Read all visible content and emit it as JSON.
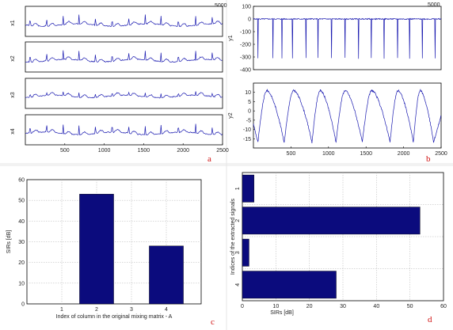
{
  "figure_labels": {
    "a": "a",
    "b": "b",
    "c": "c",
    "d": "d"
  },
  "chart_data": [
    {
      "id": "a",
      "type": "line",
      "subplots": [
        {
          "ylabel": "x1",
          "ylim": [
            -1,
            1
          ]
        },
        {
          "ylabel": "x2",
          "ylim": [
            -1,
            1
          ]
        },
        {
          "ylabel": "x3",
          "ylim": [
            -1,
            1
          ]
        },
        {
          "ylabel": "x4",
          "ylim": [
            -1,
            1
          ]
        }
      ],
      "xlim": [
        0,
        2500
      ],
      "xticks": [
        500,
        1000,
        1500,
        2000,
        2500
      ],
      "top_right_label": "5000",
      "beats_x": [
        60,
        270,
        480,
        680,
        890,
        1100,
        1310,
        1520,
        1720,
        1940,
        2160,
        2370
      ]
    },
    {
      "id": "b1",
      "type": "line",
      "ylabel": "y1",
      "xlim": [
        0,
        2500
      ],
      "ylim": [
        -400,
        100
      ],
      "yticks": [
        100,
        0,
        -100,
        -200,
        -300,
        -400
      ],
      "top_right_label": "5000",
      "spikes_x": [
        60,
        260,
        380,
        520,
        700,
        860,
        1040,
        1220,
        1400,
        1570,
        1740,
        1920,
        2080,
        2250,
        2420
      ]
    },
    {
      "id": "b2",
      "type": "line",
      "ylabel": "y2",
      "xlim": [
        0,
        2500
      ],
      "ylim": [
        -20,
        15
      ],
      "yticks": [
        10,
        5,
        0,
        -5,
        -10,
        -15
      ],
      "xticks": [
        500,
        1000,
        1500,
        2000,
        2500
      ],
      "minima_x": [
        60,
        410,
        780,
        1100,
        1450,
        1820,
        2130,
        2400
      ]
    },
    {
      "id": "c",
      "type": "bar",
      "categories": [
        "1",
        "2",
        "3",
        "4"
      ],
      "values": [
        0,
        53,
        0,
        28
      ],
      "ylabel": "SIRs [dB]",
      "xlabel": "Index of column in the original mixing matrix - A",
      "ylim": [
        0,
        60
      ],
      "yticks": [
        0,
        10,
        20,
        30,
        40,
        50,
        60
      ],
      "grid": true
    },
    {
      "id": "d",
      "type": "bar",
      "orientation": "horizontal",
      "categories": [
        "1",
        "2",
        "3",
        "4"
      ],
      "values": [
        3.5,
        53,
        2,
        28
      ],
      "xlabel": "SIRs [dB]",
      "ylabel": "Indices of the extracted signals",
      "xlim": [
        0,
        60
      ],
      "xticks": [
        0,
        10,
        20,
        30,
        40,
        50,
        60
      ],
      "grid": true
    }
  ]
}
